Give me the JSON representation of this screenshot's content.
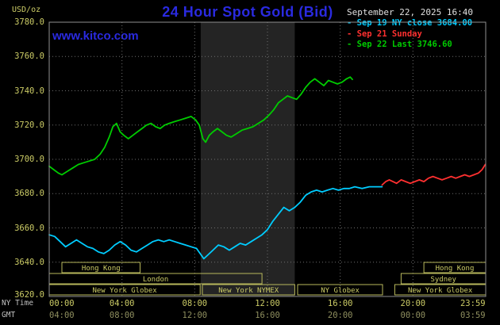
{
  "header": {
    "title": "24 Hour Spot Gold (Bid)",
    "site": "www.kitco.com",
    "datetime": "September 22, 2025 16:40"
  },
  "legend": {
    "items": [
      {
        "label": "- Sep 19 NY close 3684.00",
        "color": "#00ccff"
      },
      {
        "label": "- Sep 21 Sunday",
        "color": "#ff3030"
      },
      {
        "label": "- Sep 22 Last 3746.60",
        "color": "#00cc00"
      }
    ]
  },
  "colors": {
    "background": "#000000",
    "title_blue": "#2a2ae0",
    "axis_yellow": "#cccc66",
    "axis_dim": "#8f8f5f",
    "grid": "#6e6e6e",
    "border": "#909090",
    "band": "#242424",
    "date_text": "#e0e0e0",
    "time_label_text": "#c0c0c0",
    "session_outline": "#b8b85c"
  },
  "chart_data": {
    "type": "line",
    "title": "24 Hour Spot Gold (Bid)",
    "ylabel": "USD/oz",
    "y_axis": {
      "label": "USD/oz",
      "min": 3620,
      "max": 3780,
      "step": 20
    },
    "x_axis": {
      "ny_label": "NY Time",
      "gmt_label": "GMT",
      "tick_hours": [
        0,
        4,
        8,
        12,
        16,
        20,
        23.983
      ],
      "ny_ticks": [
        "00:00",
        "04:00",
        "08:00",
        "12:00",
        "16:00",
        "20:00",
        "23:59"
      ],
      "gmt_ticks": [
        "04:00",
        "08:00",
        "12:00",
        "16:00",
        "20:00",
        "00:00",
        "03:59"
      ],
      "grid_hours": [
        4,
        8,
        12,
        16,
        20
      ]
    },
    "nymex_band_hours": [
      8.33,
      13.5
    ],
    "sessions": [
      {
        "row": 0,
        "label": "Hong Kong",
        "start": 0.7,
        "end": 5.0
      },
      {
        "row": 0,
        "label": "Hong Kong",
        "start": 20.6,
        "end": 24
      },
      {
        "row": 1,
        "label": "London",
        "start": 0,
        "end": 11.7
      },
      {
        "row": 1,
        "label": "Sydney",
        "start": 19.35,
        "end": 24
      },
      {
        "row": 2,
        "label": "New York Globex",
        "start": 0,
        "end": 8.3
      },
      {
        "row": 2,
        "label": "New York NYMEX",
        "start": 8.42,
        "end": 13.5
      },
      {
        "row": 2,
        "label": "NY Globex",
        "start": 13.66,
        "end": 18.33
      },
      {
        "row": 2,
        "label": "New York Globex",
        "start": 19.0,
        "end": 24
      }
    ],
    "series": [
      {
        "name": "Sep 19 NY close",
        "close": 3684.0,
        "color": "#00ccff",
        "points": [
          [
            0,
            3656
          ],
          [
            0.3,
            3655
          ],
          [
            0.6,
            3652
          ],
          [
            0.9,
            3649
          ],
          [
            1.2,
            3651
          ],
          [
            1.5,
            3653
          ],
          [
            1.8,
            3651
          ],
          [
            2.1,
            3649
          ],
          [
            2.4,
            3648
          ],
          [
            2.7,
            3646
          ],
          [
            3,
            3645
          ],
          [
            3.3,
            3647
          ],
          [
            3.6,
            3650
          ],
          [
            3.9,
            3652
          ],
          [
            4.2,
            3650
          ],
          [
            4.5,
            3647
          ],
          [
            4.8,
            3646
          ],
          [
            5.1,
            3648
          ],
          [
            5.4,
            3650
          ],
          [
            5.7,
            3652
          ],
          [
            6,
            3653
          ],
          [
            6.3,
            3652
          ],
          [
            6.6,
            3653
          ],
          [
            6.9,
            3652
          ],
          [
            7.2,
            3651
          ],
          [
            7.5,
            3650
          ],
          [
            7.8,
            3649
          ],
          [
            8.1,
            3648
          ],
          [
            8.3,
            3645
          ],
          [
            8.5,
            3642
          ],
          [
            8.7,
            3644
          ],
          [
            9,
            3647
          ],
          [
            9.3,
            3650
          ],
          [
            9.6,
            3649
          ],
          [
            9.9,
            3647
          ],
          [
            10.2,
            3649
          ],
          [
            10.5,
            3651
          ],
          [
            10.8,
            3650
          ],
          [
            11.1,
            3652
          ],
          [
            11.4,
            3654
          ],
          [
            11.7,
            3656
          ],
          [
            12,
            3659
          ],
          [
            12.3,
            3664
          ],
          [
            12.6,
            3668
          ],
          [
            12.9,
            3672
          ],
          [
            13.2,
            3670
          ],
          [
            13.5,
            3672
          ],
          [
            13.8,
            3675
          ],
          [
            14.1,
            3679
          ],
          [
            14.4,
            3681
          ],
          [
            14.7,
            3682
          ],
          [
            15,
            3681
          ],
          [
            15.3,
            3682
          ],
          [
            15.6,
            3683
          ],
          [
            15.9,
            3682
          ],
          [
            16.2,
            3683
          ],
          [
            16.5,
            3683
          ],
          [
            16.8,
            3684
          ],
          [
            17.2,
            3683
          ],
          [
            17.6,
            3684
          ],
          [
            18,
            3684
          ],
          [
            18.3,
            3684
          ]
        ]
      },
      {
        "name": "Sep 21 Sunday",
        "color": "#ff3030",
        "points": [
          [
            18.3,
            3685
          ],
          [
            18.5,
            3687
          ],
          [
            18.7,
            3688
          ],
          [
            18.9,
            3687
          ],
          [
            19.1,
            3686
          ],
          [
            19.35,
            3688
          ],
          [
            19.6,
            3687
          ],
          [
            19.85,
            3686
          ],
          [
            20.1,
            3687
          ],
          [
            20.35,
            3688
          ],
          [
            20.6,
            3687
          ],
          [
            20.85,
            3689
          ],
          [
            21.1,
            3690
          ],
          [
            21.35,
            3689
          ],
          [
            21.6,
            3688
          ],
          [
            21.85,
            3689
          ],
          [
            22.1,
            3690
          ],
          [
            22.35,
            3689
          ],
          [
            22.6,
            3690
          ],
          [
            22.85,
            3691
          ],
          [
            23.1,
            3690
          ],
          [
            23.35,
            3691
          ],
          [
            23.6,
            3692
          ],
          [
            23.8,
            3694
          ],
          [
            23.98,
            3697
          ]
        ]
      },
      {
        "name": "Sep 22",
        "last": 3746.6,
        "color": "#00cc00",
        "points": [
          [
            0,
            3696
          ],
          [
            0.25,
            3694
          ],
          [
            0.5,
            3692
          ],
          [
            0.7,
            3691
          ],
          [
            1,
            3693
          ],
          [
            1.3,
            3695
          ],
          [
            1.6,
            3697
          ],
          [
            1.9,
            3698
          ],
          [
            2.2,
            3699
          ],
          [
            2.5,
            3700
          ],
          [
            2.8,
            3703
          ],
          [
            3.05,
            3707
          ],
          [
            3.3,
            3713
          ],
          [
            3.5,
            3719
          ],
          [
            3.7,
            3721
          ],
          [
            3.9,
            3716
          ],
          [
            4.1,
            3714
          ],
          [
            4.35,
            3712
          ],
          [
            4.6,
            3714
          ],
          [
            4.85,
            3716
          ],
          [
            5.1,
            3718
          ],
          [
            5.35,
            3720
          ],
          [
            5.6,
            3721
          ],
          [
            5.85,
            3719
          ],
          [
            6.1,
            3718
          ],
          [
            6.35,
            3720
          ],
          [
            6.6,
            3721
          ],
          [
            6.9,
            3722
          ],
          [
            7.2,
            3723
          ],
          [
            7.5,
            3724
          ],
          [
            7.8,
            3725
          ],
          [
            8.05,
            3723
          ],
          [
            8.25,
            3720
          ],
          [
            8.45,
            3712
          ],
          [
            8.6,
            3710
          ],
          [
            8.8,
            3714
          ],
          [
            9,
            3716
          ],
          [
            9.25,
            3718
          ],
          [
            9.5,
            3716
          ],
          [
            9.75,
            3714
          ],
          [
            10,
            3713
          ],
          [
            10.3,
            3715
          ],
          [
            10.6,
            3717
          ],
          [
            10.9,
            3718
          ],
          [
            11.2,
            3719
          ],
          [
            11.5,
            3721
          ],
          [
            11.8,
            3723
          ],
          [
            12.1,
            3726
          ],
          [
            12.35,
            3729
          ],
          [
            12.6,
            3733
          ],
          [
            12.85,
            3735
          ],
          [
            13.1,
            3737
          ],
          [
            13.35,
            3736
          ],
          [
            13.6,
            3735
          ],
          [
            13.85,
            3738
          ],
          [
            14.1,
            3742
          ],
          [
            14.35,
            3745
          ],
          [
            14.6,
            3747
          ],
          [
            14.85,
            3745
          ],
          [
            15.1,
            3743
          ],
          [
            15.35,
            3746
          ],
          [
            15.6,
            3745
          ],
          [
            15.85,
            3744
          ],
          [
            16.1,
            3745
          ],
          [
            16.35,
            3747
          ],
          [
            16.55,
            3748
          ],
          [
            16.67,
            3746.6
          ]
        ]
      }
    ]
  }
}
